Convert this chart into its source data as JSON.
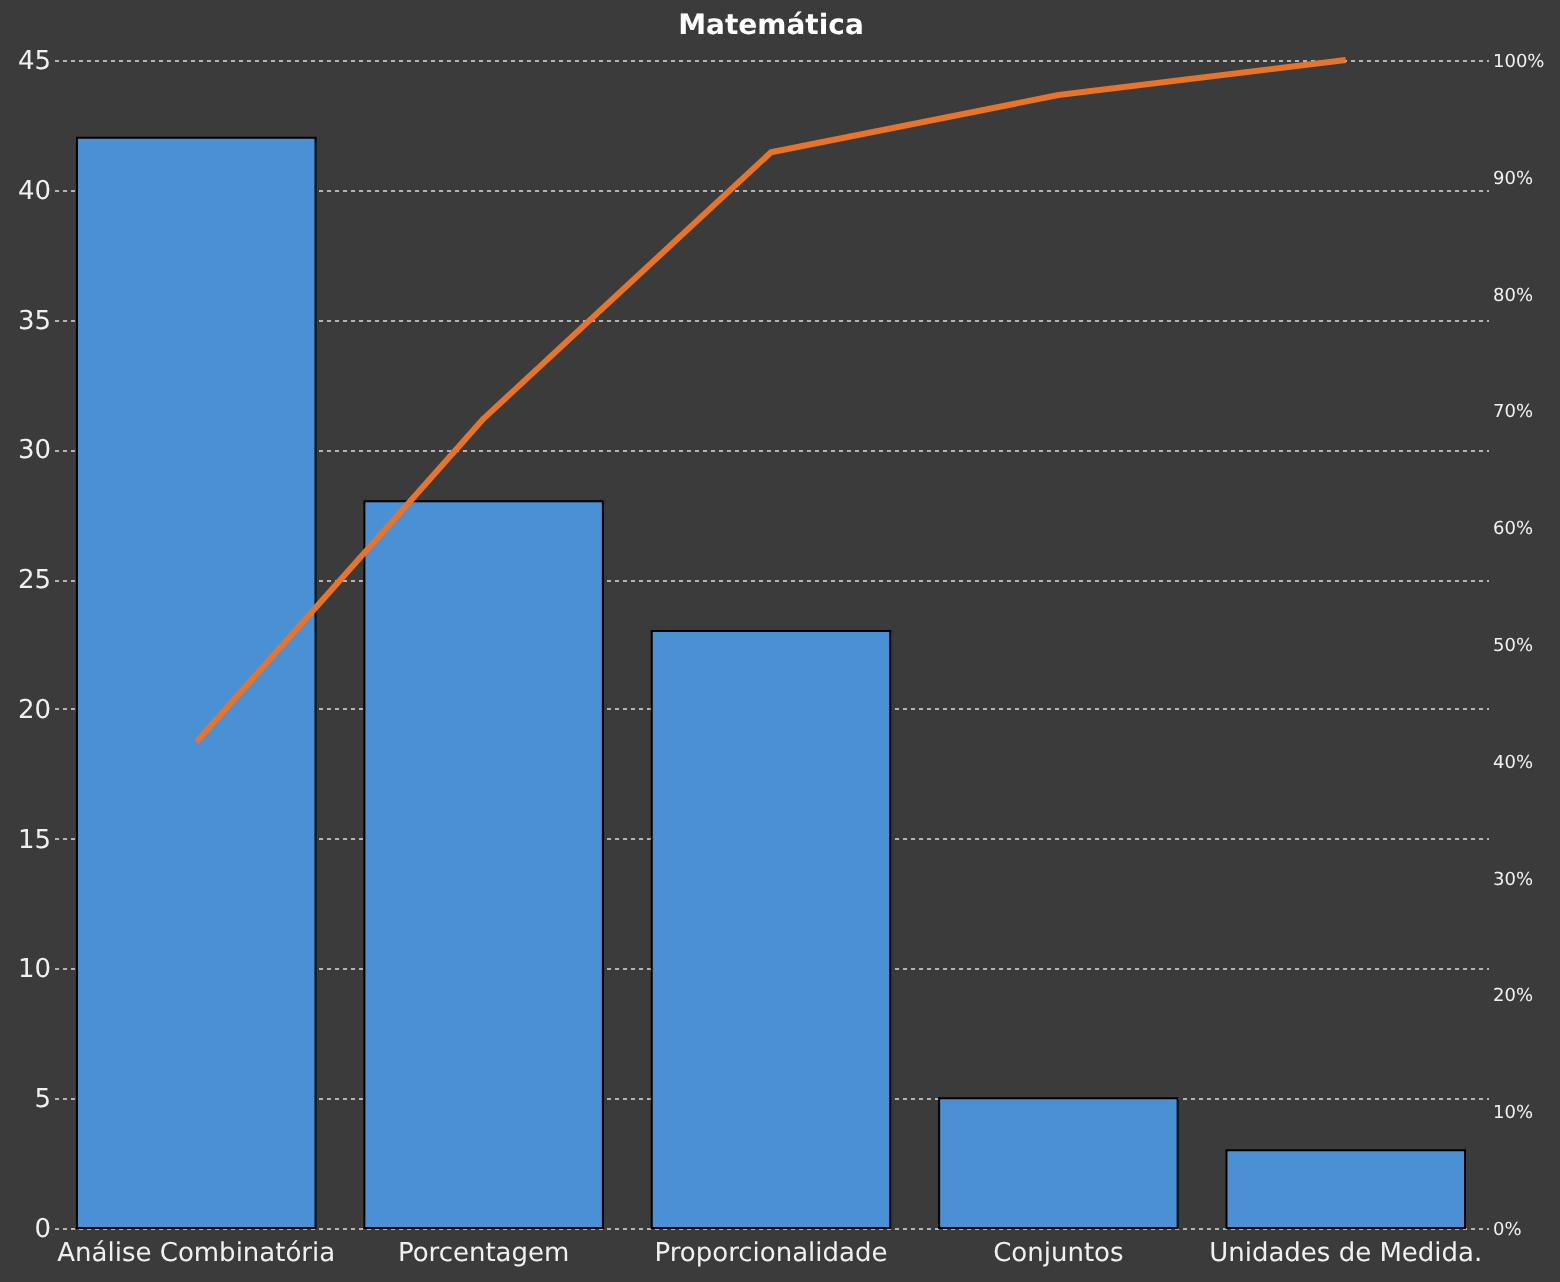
{
  "chart_data": {
    "type": "bar",
    "title": "Matemática",
    "categories": [
      "Análise Combinatória",
      "Porcentagem",
      "Proporcionalidade",
      "Conjuntos",
      "Unidades de Medida."
    ],
    "series": [
      {
        "color": "#4a90d4",
        "values": [
          42,
          28,
          23,
          5,
          3
        ]
      },
      {
        "type": "line",
        "axis": "y2",
        "color": "#e8732a",
        "values": [
          41.6,
          69.3,
          92.1,
          97.0,
          100
        ]
      }
    ],
    "ylim": [
      0,
      45
    ],
    "yticks": [
      0,
      5,
      10,
      15,
      20,
      25,
      30,
      35,
      40,
      45
    ],
    "y2lim": [
      0,
      100
    ],
    "y2ticks": [
      {
        "value": 0,
        "label": "0%"
      },
      {
        "value": 10,
        "label": "10%"
      },
      {
        "value": 20,
        "label": "20%"
      },
      {
        "value": 30,
        "label": "30%"
      },
      {
        "value": 40,
        "label": "40%"
      },
      {
        "value": 50,
        "label": "50%"
      },
      {
        "value": 60,
        "label": "60%"
      },
      {
        "value": 70,
        "label": "70%"
      },
      {
        "value": 80,
        "label": "80%"
      },
      {
        "value": 90,
        "label": "90%"
      },
      {
        "value": 100,
        "label": "100%"
      }
    ],
    "grid": "y",
    "marker": "none",
    "line_style": "solid"
  }
}
